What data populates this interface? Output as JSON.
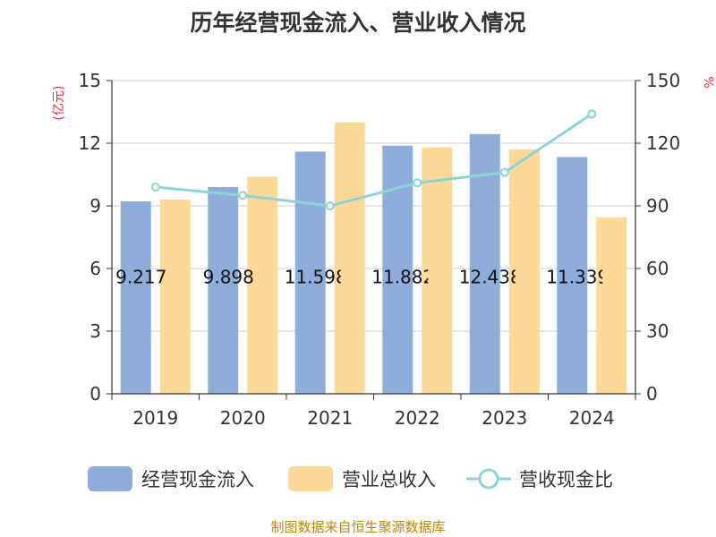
{
  "chart_data": {
    "type": "bar",
    "title": "历年经营现金流入、营业收入情况",
    "categories": [
      "2019",
      "2020",
      "2021",
      "2022",
      "2023",
      "2024"
    ],
    "series": [
      {
        "name": "经营现金流入",
        "type": "bar",
        "axis": "left",
        "color": "#8eaddb",
        "values": [
          9.217,
          9.898,
          11.598,
          11.882,
          12.438,
          11.339
        ],
        "labels": [
          "9.217",
          "9.898",
          "11.598",
          "11.882",
          "12.438",
          "11.339"
        ]
      },
      {
        "name": "营业总收入",
        "type": "bar",
        "axis": "left",
        "color": "#fdd998",
        "values": [
          9.3,
          10.4,
          13.0,
          11.8,
          11.7,
          8.45
        ]
      },
      {
        "name": "营收现金比",
        "type": "line",
        "axis": "right",
        "color": "#8dd3d6",
        "values": [
          99,
          95,
          90,
          101,
          106,
          134
        ]
      }
    ],
    "left_axis": {
      "unit": "(亿元)",
      "min": 0,
      "max": 15,
      "ticks": [
        "0",
        "3",
        "6",
        "9",
        "12",
        "15"
      ]
    },
    "right_axis": {
      "unit": "%",
      "min": 0,
      "max": 150,
      "ticks": [
        "0",
        "30",
        "60",
        "90",
        "120",
        "150"
      ]
    },
    "grid": true,
    "legend_position": "bottom",
    "source": "制图数据来自恒生聚源数据库"
  }
}
